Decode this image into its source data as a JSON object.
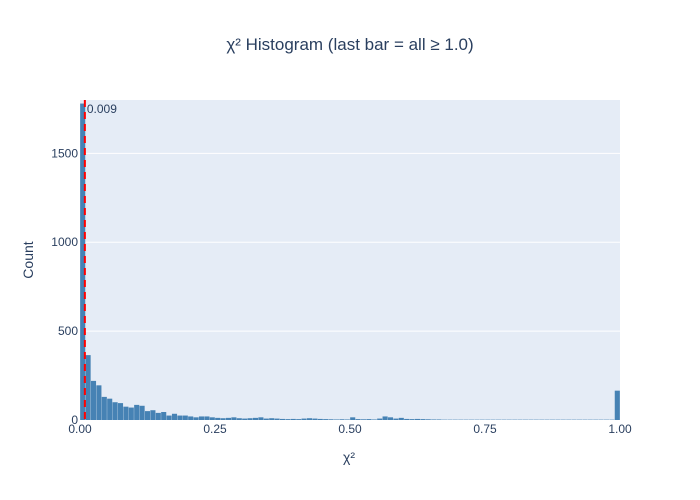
{
  "chart_data": {
    "type": "bar",
    "title": "χ² Histogram (last bar = all ≥ 1.0)",
    "xlabel": "χ²",
    "ylabel": "Count",
    "xlim": [
      0,
      1.0
    ],
    "ylim": [
      0,
      1800
    ],
    "x_ticks": [
      "0.00",
      "0.25",
      "0.50",
      "0.75",
      "1.00"
    ],
    "y_ticks": [
      "0",
      "500",
      "1000",
      "1500"
    ],
    "bin_width": 0.01,
    "bin_starts": [
      0.0,
      0.01,
      0.02,
      0.03,
      0.04,
      0.05,
      0.06,
      0.07,
      0.08,
      0.09,
      0.1,
      0.11,
      0.12,
      0.13,
      0.14,
      0.15,
      0.16,
      0.17,
      0.18,
      0.19,
      0.2,
      0.21,
      0.22,
      0.23,
      0.24,
      0.25,
      0.26,
      0.27,
      0.28,
      0.29,
      0.3,
      0.31,
      0.32,
      0.33,
      0.34,
      0.35,
      0.36,
      0.37,
      0.38,
      0.39,
      0.4,
      0.41,
      0.42,
      0.43,
      0.44,
      0.45,
      0.46,
      0.47,
      0.48,
      0.49,
      0.5,
      0.51,
      0.52,
      0.53,
      0.54,
      0.55,
      0.56,
      0.57,
      0.58,
      0.59,
      0.6,
      0.61,
      0.62,
      0.63,
      0.64,
      0.65,
      0.66,
      0.67,
      0.68,
      0.69,
      0.7,
      0.71,
      0.72,
      0.73,
      0.74,
      0.75,
      0.76,
      0.77,
      0.78,
      0.79,
      0.8,
      0.81,
      0.82,
      0.83,
      0.84,
      0.85,
      0.86,
      0.87,
      0.88,
      0.89,
      0.9,
      0.91,
      0.92,
      0.93,
      0.94,
      0.95,
      0.96,
      0.97,
      0.98,
      0.99
    ],
    "values": [
      1780,
      365,
      220,
      195,
      130,
      120,
      100,
      95,
      75,
      70,
      85,
      80,
      50,
      55,
      40,
      45,
      25,
      35,
      25,
      25,
      20,
      15,
      20,
      20,
      15,
      12,
      10,
      12,
      15,
      10,
      8,
      10,
      12,
      15,
      8,
      10,
      8,
      6,
      5,
      6,
      5,
      8,
      10,
      8,
      6,
      5,
      4,
      3,
      4,
      3,
      15,
      5,
      4,
      5,
      3,
      8,
      20,
      15,
      8,
      12,
      6,
      5,
      6,
      5,
      4,
      3,
      3,
      2,
      2,
      2,
      2,
      2,
      2,
      2,
      2,
      2,
      2,
      2,
      2,
      2,
      2,
      2,
      2,
      2,
      2,
      2,
      2,
      2,
      2,
      2,
      2,
      2,
      2,
      2,
      2,
      2,
      2,
      2,
      2,
      165
    ],
    "bar_color": "#4682b4",
    "reference_line": {
      "x": 0.009,
      "label": "0.009",
      "color": "#ff0000",
      "style": "dash"
    },
    "background": "#e5ecf6",
    "grid": true
  }
}
